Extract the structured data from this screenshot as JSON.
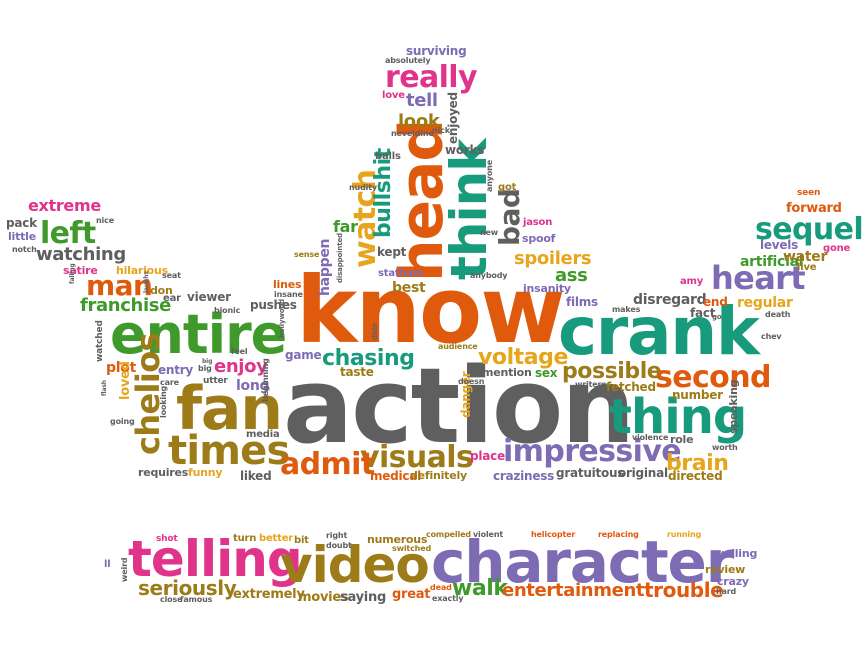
{
  "colors": {
    "orange": "#e05a0e",
    "green": "#3f9a2b",
    "gray": "#5f5f5f",
    "teal": "#189b7c",
    "purple": "#7d6bb3",
    "pink": "#e0338a",
    "olive": "#9c7b18",
    "gold": "#e7a51d"
  },
  "words": [
    {
      "id": "w1",
      "text": "action",
      "color": "gray"
    },
    {
      "id": "w2",
      "text": "know",
      "color": "orange"
    },
    {
      "id": "w3",
      "text": "crank",
      "color": "teal"
    },
    {
      "id": "w4",
      "text": "entire",
      "color": "green"
    },
    {
      "id": "w5",
      "text": "fan",
      "color": "olive"
    },
    {
      "id": "w6",
      "text": "character",
      "color": "purple"
    },
    {
      "id": "w7",
      "text": "telling",
      "color": "pink"
    },
    {
      "id": "w8",
      "text": "video",
      "color": "olive"
    },
    {
      "id": "w9",
      "text": "head",
      "color": "orange"
    },
    {
      "id": "w10",
      "text": "think",
      "color": "teal"
    },
    {
      "id": "w11",
      "text": "thing",
      "color": "teal"
    },
    {
      "id": "w12",
      "text": "times",
      "color": "olive"
    },
    {
      "id": "w13",
      "text": "heart",
      "color": "purple"
    },
    {
      "id": "w14",
      "text": "sequel",
      "color": "teal"
    },
    {
      "id": "w15",
      "text": "second",
      "color": "orange"
    },
    {
      "id": "w16",
      "text": "impressive",
      "color": "purple"
    },
    {
      "id": "w17",
      "text": "visuals",
      "color": "olive"
    },
    {
      "id": "w18",
      "text": "admit",
      "color": "orange"
    },
    {
      "id": "w19",
      "text": "chelios",
      "color": "olive"
    },
    {
      "id": "w20",
      "text": "really",
      "color": "pink"
    },
    {
      "id": "w21",
      "text": "left",
      "color": "green"
    },
    {
      "id": "w22",
      "text": "man",
      "color": "orange"
    },
    {
      "id": "w23",
      "text": "watch",
      "color": "gold"
    },
    {
      "id": "w24",
      "text": "bullshit",
      "color": "teal"
    },
    {
      "id": "w25",
      "text": "bad",
      "color": "gray"
    },
    {
      "id": "w26",
      "text": "possible",
      "color": "olive"
    },
    {
      "id": "w27",
      "text": "voltage",
      "color": "gold"
    },
    {
      "id": "w28",
      "text": "chasing",
      "color": "teal"
    },
    {
      "id": "w29",
      "text": "brain",
      "color": "gold"
    },
    {
      "id": "w30",
      "text": "walk",
      "color": "green"
    },
    {
      "id": "w31",
      "text": "entertainment",
      "color": "orange"
    },
    {
      "id": "w32",
      "text": "trouble",
      "color": "orange"
    },
    {
      "id": "w33",
      "text": "seriously",
      "color": "olive"
    },
    {
      "id": "w34",
      "text": "watching",
      "color": "gray"
    },
    {
      "id": "w35",
      "text": "extreme",
      "color": "pink"
    },
    {
      "id": "w36",
      "text": "franchise",
      "color": "green"
    },
    {
      "id": "w37",
      "text": "look",
      "color": "olive"
    },
    {
      "id": "w38",
      "text": "tell",
      "color": "purple"
    },
    {
      "id": "w39",
      "text": "spoilers",
      "color": "gold"
    },
    {
      "id": "w40",
      "text": "enjoy",
      "color": "pink"
    },
    {
      "id": "w41",
      "text": "ass",
      "color": "green"
    },
    {
      "id": "w42",
      "text": "best",
      "color": "olive"
    },
    {
      "id": "w43",
      "text": "happen",
      "color": "purple"
    },
    {
      "id": "w44",
      "text": "kept",
      "color": "gray"
    },
    {
      "id": "w45",
      "text": "far",
      "color": "green"
    },
    {
      "id": "w46",
      "text": "surviving",
      "color": "purple"
    },
    {
      "id": "w47",
      "text": "works",
      "color": "gray"
    },
    {
      "id": "w48",
      "text": "enjoyed",
      "color": "gray"
    },
    {
      "id": "w49",
      "text": "artificial",
      "color": "green"
    },
    {
      "id": "w50",
      "text": "forward",
      "color": "orange"
    },
    {
      "id": "w51",
      "text": "water",
      "color": "olive"
    },
    {
      "id": "w52",
      "text": "levels",
      "color": "purple"
    },
    {
      "id": "w53",
      "text": "regular",
      "color": "gold"
    },
    {
      "id": "w54",
      "text": "disregard",
      "color": "gray"
    },
    {
      "id": "w55",
      "text": "number",
      "color": "olive"
    },
    {
      "id": "w56",
      "text": "fetched",
      "color": "olive"
    },
    {
      "id": "w57",
      "text": "mention",
      "color": "gray"
    },
    {
      "id": "w58",
      "text": "sex",
      "color": "green"
    },
    {
      "id": "w59",
      "text": "danger",
      "color": "gold"
    },
    {
      "id": "w60",
      "text": "taste",
      "color": "olive"
    },
    {
      "id": "w61",
      "text": "game",
      "color": "purple"
    },
    {
      "id": "w62",
      "text": "long",
      "color": "purple"
    },
    {
      "id": "w63",
      "text": "plot",
      "color": "orange"
    },
    {
      "id": "w64",
      "text": "loved",
      "color": "gold"
    },
    {
      "id": "w65",
      "text": "entry",
      "color": "purple"
    },
    {
      "id": "w66",
      "text": "viewer",
      "color": "gray"
    },
    {
      "id": "w67",
      "text": "pushes",
      "color": "gray"
    },
    {
      "id": "w68",
      "text": "hilarious",
      "color": "gold"
    },
    {
      "id": "w69",
      "text": "satire",
      "color": "pink"
    },
    {
      "id": "w70",
      "text": "pack",
      "color": "gray"
    },
    {
      "id": "w71",
      "text": "little",
      "color": "purple"
    },
    {
      "id": "w72",
      "text": "lines",
      "color": "orange"
    },
    {
      "id": "w73",
      "text": "place",
      "color": "pink"
    },
    {
      "id": "w74",
      "text": "medical",
      "color": "orange"
    },
    {
      "id": "w75",
      "text": "definitely",
      "color": "olive"
    },
    {
      "id": "w76",
      "text": "craziness",
      "color": "purple"
    },
    {
      "id": "w77",
      "text": "gratuitous",
      "color": "gray"
    },
    {
      "id": "w78",
      "text": "original",
      "color": "gray"
    },
    {
      "id": "w79",
      "text": "directed",
      "color": "olive"
    },
    {
      "id": "w80",
      "text": "requires",
      "color": "gray"
    },
    {
      "id": "w81",
      "text": "funny",
      "color": "gold"
    },
    {
      "id": "w82",
      "text": "liked",
      "color": "gray"
    },
    {
      "id": "w83",
      "text": "media",
      "color": "gray"
    },
    {
      "id": "w84",
      "text": "role",
      "color": "gray"
    },
    {
      "id": "w85",
      "text": "speaking",
      "color": "gray"
    },
    {
      "id": "w86",
      "text": "end",
      "color": "orange"
    },
    {
      "id": "w87",
      "text": "fact",
      "color": "gray"
    },
    {
      "id": "w88",
      "text": "films",
      "color": "purple"
    },
    {
      "id": "w89",
      "text": "insanity",
      "color": "purple"
    },
    {
      "id": "w90",
      "text": "spoof",
      "color": "purple"
    },
    {
      "id": "w91",
      "text": "jason",
      "color": "pink"
    },
    {
      "id": "w92",
      "text": "statham",
      "color": "purple"
    },
    {
      "id": "w93",
      "text": "got",
      "color": "olive"
    },
    {
      "id": "w94",
      "text": "balls",
      "color": "gray"
    },
    {
      "id": "w95",
      "text": "love",
      "color": "pink"
    },
    {
      "id": "w96",
      "text": "absolutely",
      "color": "gray"
    },
    {
      "id": "w97",
      "text": "seen",
      "color": "orange"
    },
    {
      "id": "w98",
      "text": "amy",
      "color": "pink"
    },
    {
      "id": "w99",
      "text": "live",
      "color": "olive"
    },
    {
      "id": "w100",
      "text": "gone",
      "color": "pink"
    },
    {
      "id": "w101",
      "text": "don",
      "color": "olive"
    },
    {
      "id": "w102",
      "text": "ear",
      "color": "gray"
    },
    {
      "id": "w103",
      "text": "extremely",
      "color": "olive"
    },
    {
      "id": "w104",
      "text": "movies",
      "color": "olive"
    },
    {
      "id": "w105",
      "text": "saying",
      "color": "gray"
    },
    {
      "id": "w106",
      "text": "great",
      "color": "orange"
    },
    {
      "id": "w107",
      "text": "numerous",
      "color": "olive"
    },
    {
      "id": "w108",
      "text": "compelled",
      "color": "olive"
    },
    {
      "id": "w109",
      "text": "turn",
      "color": "olive"
    },
    {
      "id": "w110",
      "text": "better",
      "color": "gold"
    },
    {
      "id": "w111",
      "text": "bit",
      "color": "olive"
    },
    {
      "id": "w112",
      "text": "shot",
      "color": "pink"
    },
    {
      "id": "w113",
      "text": "review",
      "color": "olive"
    },
    {
      "id": "w114",
      "text": "crazy",
      "color": "purple"
    },
    {
      "id": "w115",
      "text": "yelling",
      "color": "purple"
    },
    {
      "id": "w116",
      "text": "helicopter",
      "color": "orange"
    },
    {
      "id": "w117",
      "text": "replacing",
      "color": "orange"
    },
    {
      "id": "w118",
      "text": "violent",
      "color": "gray"
    },
    {
      "id": "w119",
      "text": "exactly",
      "color": "gray"
    },
    {
      "id": "w120",
      "text": "dead",
      "color": "orange"
    },
    {
      "id": "w121",
      "text": "right",
      "color": "gray"
    },
    {
      "id": "w122",
      "text": "doubt",
      "color": "gray"
    },
    {
      "id": "w123",
      "text": "switched",
      "color": "olive"
    },
    {
      "id": "w124",
      "text": "close",
      "color": "gray"
    },
    {
      "id": "w125",
      "text": "famous",
      "color": "gray"
    },
    {
      "id": "w126",
      "text": "weird",
      "color": "gray"
    },
    {
      "id": "w127",
      "text": "ll",
      "color": "purple"
    },
    {
      "id": "w128",
      "text": "hard",
      "color": "gray"
    },
    {
      "id": "w129",
      "text": "running",
      "color": "gold"
    },
    {
      "id": "w130",
      "text": "audience",
      "color": "olive"
    },
    {
      "id": "w131",
      "text": "doesn",
      "color": "gray"
    },
    {
      "id": "w132",
      "text": "writers",
      "color": "gray"
    },
    {
      "id": "w133",
      "text": "violence",
      "color": "gray"
    },
    {
      "id": "w134",
      "text": "worth",
      "color": "gray"
    },
    {
      "id": "w135",
      "text": "sense",
      "color": "olive"
    },
    {
      "id": "w136",
      "text": "new",
      "color": "gray"
    },
    {
      "id": "w137",
      "text": "anybody",
      "color": "gray"
    },
    {
      "id": "w138",
      "text": "anyone",
      "color": "gray"
    },
    {
      "id": "w139",
      "text": "nick",
      "color": "gray"
    },
    {
      "id": "w140",
      "text": "neveldine",
      "color": "gray"
    },
    {
      "id": "w141",
      "text": "feel",
      "color": "gray"
    },
    {
      "id": "w142",
      "text": "big",
      "color": "gray"
    },
    {
      "id": "w143",
      "text": "utter",
      "color": "gray"
    },
    {
      "id": "w144",
      "text": "care",
      "color": "gray"
    },
    {
      "id": "w145",
      "text": "going",
      "color": "gray"
    },
    {
      "id": "w146",
      "text": "looking",
      "color": "gray"
    },
    {
      "id": "w147",
      "text": "nice",
      "color": "gray"
    },
    {
      "id": "w148",
      "text": "notch",
      "color": "gray"
    },
    {
      "id": "w149",
      "text": "chev",
      "color": "gray"
    },
    {
      "id": "w150",
      "text": "death",
      "color": "gray"
    },
    {
      "id": "w151",
      "text": "makes",
      "color": "gray"
    },
    {
      "id": "w152",
      "text": "bionic",
      "color": "gray"
    },
    {
      "id": "w153",
      "text": "insane",
      "color": "gray"
    },
    {
      "id": "w154",
      "text": "seat",
      "color": "gray"
    },
    {
      "id": "w155",
      "text": "nudity",
      "color": "gray"
    },
    {
      "id": "w156",
      "text": "disappointed",
      "color": "gray"
    },
    {
      "id": "w157",
      "text": "hollywood",
      "color": "gray"
    },
    {
      "id": "w158",
      "text": "beginning",
      "color": "gray"
    },
    {
      "id": "w159",
      "text": "watched",
      "color": "gray"
    },
    {
      "id": "w160",
      "text": "didn",
      "color": "gray"
    },
    {
      "id": "w161",
      "text": "laughs",
      "color": "gray"
    },
    {
      "id": "w162",
      "text": "falling",
      "color": "gray"
    },
    {
      "id": "w163",
      "text": "flash",
      "color": "gray"
    },
    {
      "id": "w164",
      "text": "big",
      "color": "gray"
    },
    {
      "id": "w165",
      "text": "go",
      "color": "gray"
    }
  ]
}
